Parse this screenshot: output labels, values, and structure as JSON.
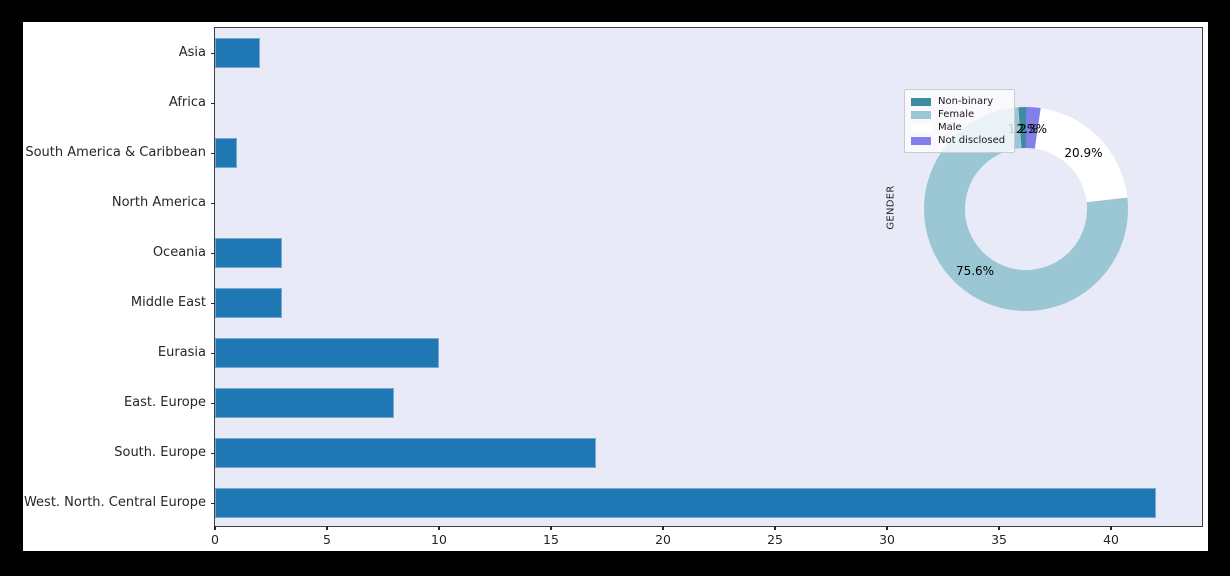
{
  "figure": {
    "frame_color": "#000000",
    "figure_bg": "#ffffff",
    "plot_bg": "#e8ebf7"
  },
  "chart_data": [
    {
      "type": "bar",
      "orientation": "horizontal",
      "title": "",
      "xlabel": "",
      "ylabel": "",
      "categories": [
        "Asia",
        "Africa",
        "South America & Caribbean",
        "North America",
        "Oceania",
        "Middle East",
        "Eurasia",
        "East. Europe",
        "South. Europe",
        "West. North. Central Europe"
      ],
      "values": [
        2,
        0,
        1,
        0,
        3,
        3,
        10,
        8,
        17,
        42
      ],
      "xlim": [
        0,
        44.15
      ],
      "xticks": [
        0,
        5,
        10,
        15,
        20,
        25,
        30,
        35,
        40
      ],
      "bar_color": "#1f77b4",
      "grid": false
    },
    {
      "type": "pie",
      "donut": true,
      "ylabel": "GENDER",
      "start_angle": 90,
      "direction": "counterclockwise",
      "legend_position": "upper left",
      "slices": [
        {
          "label": "Non-binary",
          "pct": 1.2,
          "pct_label": "1.2%",
          "color": "#3d8ca0"
        },
        {
          "label": "Female",
          "pct": 75.6,
          "pct_label": "75.6%",
          "color": "#9ac7d3"
        },
        {
          "label": "Male",
          "pct": 20.9,
          "pct_label": "20.9%",
          "color": "#ffffff"
        },
        {
          "label": "Not disclosed",
          "pct": 2.3,
          "pct_label": "2.3%",
          "color": "#8280e8"
        }
      ]
    }
  ]
}
